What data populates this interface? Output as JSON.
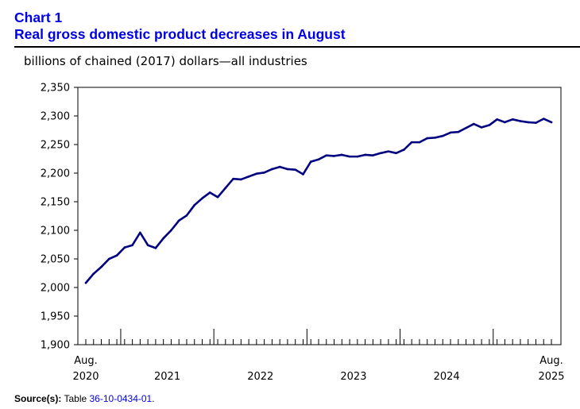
{
  "header": {
    "chart_label": "Chart 1",
    "title": "Real gross domestic product decreases in August"
  },
  "unit_label": "billions of chained (2017) dollars—all industries",
  "source": {
    "label": "Source(s):",
    "text": "Table",
    "link_text": "36-10-0434-01",
    "suffix": "."
  },
  "colors": {
    "accent": "#0000e6",
    "line": "#000080",
    "axis": "#000000"
  },
  "chart_data": {
    "type": "line",
    "title": "Real gross domestic product decreases in August",
    "ylabel": "billions of chained (2017) dollars—all industries",
    "xlabel": "",
    "ylim": [
      1900,
      2350
    ],
    "yticks": [
      1900,
      1950,
      2000,
      2050,
      2100,
      2150,
      2200,
      2250,
      2300,
      2350
    ],
    "ytick_labels": [
      "1,900",
      "1,950",
      "2,000",
      "2,050",
      "2,100",
      "2,150",
      "2,200",
      "2,250",
      "2,300",
      "2,350"
    ],
    "x_start": "2020-08",
    "x_end": "2025-08",
    "x_tick_labels": [
      {
        "month_index": 0,
        "line1": "Aug.",
        "line2": "2020"
      },
      {
        "month_index": 10.5,
        "line1": "",
        "line2": "2021"
      },
      {
        "month_index": 22.5,
        "line1": "",
        "line2": "2022"
      },
      {
        "month_index": 34.5,
        "line1": "",
        "line2": "2023"
      },
      {
        "month_index": 46.5,
        "line1": "",
        "line2": "2024"
      },
      {
        "month_index": 60,
        "line1": "Aug.",
        "line2": "2025"
      }
    ],
    "year_boundaries": [
      4.5,
      16.5,
      28.5,
      40.5,
      52.5
    ],
    "series": [
      {
        "name": "Real GDP",
        "values": [
          2008,
          2024,
          2036,
          2050,
          2056,
          2070,
          2074,
          2096,
          2074,
          2069,
          2086,
          2100,
          2117,
          2126,
          2144,
          2156,
          2166,
          2158,
          2174,
          2190,
          2189,
          2194,
          2199,
          2201,
          2207,
          2211,
          2207,
          2206,
          2198,
          2220,
          2224,
          2231,
          2230,
          2232,
          2229,
          2229,
          2232,
          2231,
          2235,
          2238,
          2235,
          2241,
          2254,
          2254,
          2261,
          2262,
          2265,
          2271,
          2272,
          2279,
          2286,
          2280,
          2284,
          2294,
          2289,
          2294,
          2291,
          2289,
          2288,
          2295,
          2289
        ]
      }
    ]
  }
}
